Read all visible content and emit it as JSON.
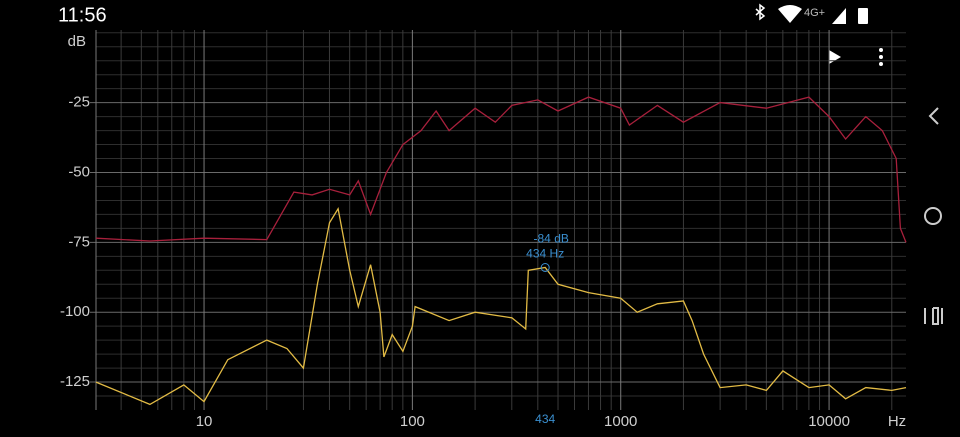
{
  "status_bar": {
    "time": "11:56",
    "network": "4G+"
  },
  "chart_data": {
    "type": "line",
    "log_x": true,
    "x_label": "Hz",
    "y_label": "dB",
    "xlim": [
      3.03,
      23400
    ],
    "ylim": [
      -135,
      1
    ],
    "xticks": [
      10,
      100,
      1000,
      10000
    ],
    "xminorticks": [
      4,
      5,
      6,
      7,
      8,
      9,
      20,
      30,
      40,
      50,
      60,
      70,
      80,
      90,
      200,
      300,
      400,
      500,
      600,
      700,
      800,
      900,
      2000,
      3000,
      4000,
      5000,
      6000,
      7000,
      8000,
      9000,
      20000
    ],
    "yticks": [
      -125,
      -100,
      -75,
      -50,
      -25
    ],
    "yminorticks": [
      -130,
      -120,
      -115,
      -110,
      -105,
      -95,
      -90,
      -85,
      -80,
      -70,
      -65,
      -60,
      -55,
      -45,
      -40,
      -35,
      -30,
      -20,
      -15,
      -10,
      -5,
      0
    ],
    "grid": true,
    "series": [
      {
        "color": "#a8203c",
        "x": [
          3.03,
          5.5,
          10,
          20,
          27,
          33,
          40,
          50,
          55,
          63,
          75,
          90,
          110,
          130,
          150,
          200,
          250,
          300,
          400,
          500,
          700,
          1000,
          1100,
          1500,
          2000,
          3000,
          5000,
          8000,
          10000,
          12000,
          15000,
          18000,
          21000,
          22000,
          23400
        ],
        "values": [
          -73.5,
          -74.5,
          -73.5,
          -74,
          -57,
          -58,
          -56,
          -58,
          -53,
          -65,
          -50,
          -40,
          -35,
          -28,
          -35,
          -27,
          -32,
          -26,
          -24,
          -28,
          -23,
          -27,
          -33,
          -26,
          -32,
          -25,
          -27,
          -23,
          -30,
          -38,
          -30,
          -35,
          -45,
          -70,
          -75
        ]
      },
      {
        "color": "#e2bb45",
        "x": [
          3.03,
          5.5,
          8,
          10,
          13,
          20,
          25,
          30,
          35,
          40,
          44,
          50,
          55,
          63,
          70,
          73,
          80,
          90,
          100,
          103,
          150,
          200,
          300,
          350,
          360,
          434,
          500,
          700,
          1000,
          1200,
          1500,
          2000,
          2200,
          2500,
          3000,
          4000,
          5000,
          6000,
          8000,
          10000,
          12000,
          15000,
          20000,
          23400
        ],
        "values": [
          -125,
          -133,
          -126,
          -132,
          -117,
          -110,
          -113,
          -120,
          -90,
          -68,
          -63,
          -85,
          -98,
          -83,
          -100,
          -116,
          -108,
          -114,
          -105,
          -98,
          -103,
          -100,
          -102,
          -106,
          -85,
          -84,
          -90,
          -93,
          -95,
          -100,
          -97,
          -96,
          -103,
          -115,
          -127,
          -126,
          -128,
          -121,
          -127,
          -126,
          -131,
          -127,
          -128,
          -127
        ]
      }
    ],
    "marker": {
      "x": 434,
      "y": -84,
      "value_label": "-84 dB",
      "freq_label": "434 Hz"
    }
  }
}
